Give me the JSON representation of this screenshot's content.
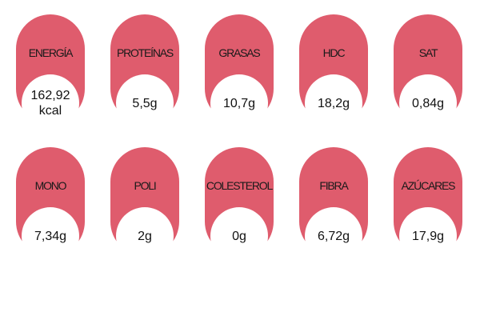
{
  "colors": {
    "pill": "#df5c6d",
    "circle": "#ffffff",
    "text": "#111111"
  },
  "nutrients": [
    {
      "label": "ENERGÍA",
      "value": "162,92\nkcal"
    },
    {
      "label": "PROTEÍNAS",
      "value": "5,5g"
    },
    {
      "label": "GRASAS",
      "value": "10,7g"
    },
    {
      "label": "HDC",
      "value": "18,2g"
    },
    {
      "label": "SAT",
      "value": "0,84g"
    },
    {
      "label": "MONO",
      "value": "7,34g"
    },
    {
      "label": "POLI",
      "value": "2g"
    },
    {
      "label": "COLESTEROL",
      "value": "0g"
    },
    {
      "label": "FIBRA",
      "value": "6,72g"
    },
    {
      "label": "AZÚCARES",
      "value": "17,9g"
    }
  ]
}
